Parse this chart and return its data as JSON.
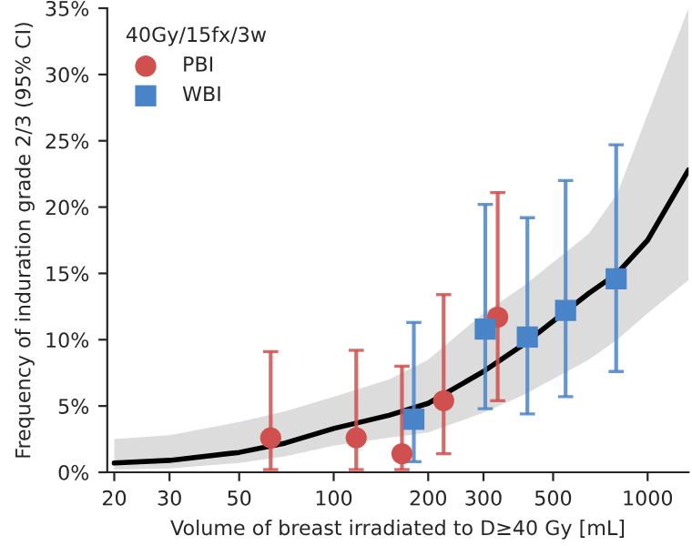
{
  "chart_data": {
    "type": "scatter",
    "xlabel": "Volume of breast irradiated to D≥40 Gy [mL]",
    "ylabel": "Frequency of induration grade 2/3 (95% CI)",
    "legend_title": "40Gy/15fx/3w",
    "log": "x",
    "xlim": [
      19,
      1350
    ],
    "xticks": [
      20,
      30,
      50,
      100,
      200,
      300,
      500,
      1000
    ],
    "ylim": [
      0,
      35
    ],
    "yticks": [
      {
        "value": 0,
        "label": "0%"
      },
      {
        "value": 5,
        "label": "5%"
      },
      {
        "value": 10,
        "label": "10%"
      },
      {
        "value": 15,
        "label": "15%"
      },
      {
        "value": 20,
        "label": "20%"
      },
      {
        "value": 25,
        "label": "25%"
      },
      {
        "value": 30,
        "label": "30%"
      },
      {
        "value": 35,
        "label": "35%"
      }
    ],
    "grid": false,
    "legend": "top left",
    "series": [
      {
        "type": "line",
        "color": "#000000",
        "marker": "none",
        "line_style": "solid",
        "x": [
          20,
          30,
          50,
          70,
          100,
          150,
          200,
          300,
          400,
          650,
          800,
          1000,
          1350
        ],
        "values": [
          0.7,
          0.9,
          1.5,
          2.2,
          3.3,
          4.3,
          5.2,
          7.6,
          9.6,
          13.5,
          15.0,
          17.5,
          22.8
        ],
        "lower": [
          0.2,
          0.3,
          0.7,
          1.2,
          2.0,
          2.6,
          3.0,
          4.5,
          5.8,
          8.5,
          10.0,
          12.0,
          14.5
        ],
        "upper": [
          2.5,
          2.8,
          3.8,
          4.6,
          5.7,
          7.0,
          8.5,
          12.0,
          14.0,
          18.0,
          21.0,
          27.0,
          35.0
        ]
      },
      {
        "name": "PBI",
        "color": "#d04f4f",
        "marker": "circle",
        "x": [
          63,
          118,
          165,
          224,
          333
        ],
        "values": [
          2.6,
          2.6,
          1.4,
          5.4,
          11.7
        ],
        "errors": [
          [
            0.2,
            9.1
          ],
          [
            0.2,
            9.2
          ],
          [
            0.2,
            8.0
          ],
          [
            1.4,
            13.4
          ],
          [
            5.4,
            21.1
          ]
        ]
      },
      {
        "name": "WBI",
        "color": "#4a84c8",
        "marker": "square",
        "x": [
          180,
          304,
          414,
          548,
          794
        ],
        "values": [
          4.0,
          10.8,
          10.2,
          12.2,
          14.6
        ],
        "errors": [
          [
            0.8,
            11.3
          ],
          [
            4.8,
            20.2
          ],
          [
            4.4,
            19.2
          ],
          [
            5.7,
            22.0
          ],
          [
            7.6,
            24.7
          ]
        ]
      }
    ]
  }
}
